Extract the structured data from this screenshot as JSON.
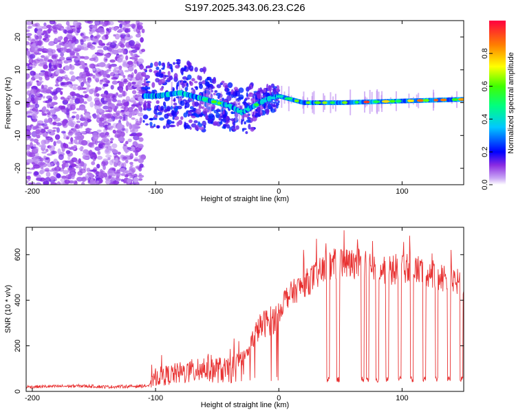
{
  "title": "S197.2025.343.06.23.C26",
  "chart_data": [
    {
      "type": "heatmap",
      "xlabel": "Height of straight line (km)",
      "ylabel": "Frequency (Hz)",
      "xlim": [
        -205,
        150
      ],
      "ylim": [
        -25,
        25
      ],
      "x_ticks": [
        -200,
        -100,
        0,
        100
      ],
      "y_ticks": [
        -20,
        -10,
        0,
        10,
        20
      ],
      "colorbar": {
        "label": "Normalized spectral amplitude",
        "range": [
          0,
          1
        ],
        "ticks": [
          "0.0",
          "0.2",
          "0.4",
          "0.6",
          "0.8"
        ]
      },
      "ridge": {
        "description_points_x": [
          -100,
          -80,
          -60,
          -40,
          -30,
          -20,
          -10,
          0,
          20,
          50,
          100,
          150
        ],
        "frequency_hz": [
          2,
          3,
          1,
          -1,
          -3,
          -1,
          1,
          2,
          0,
          0,
          0.5,
          1
        ]
      }
    },
    {
      "type": "line",
      "xlabel": "Height of straight line (km)",
      "ylabel": "SNR (10 * v/v)",
      "xlim": [
        -205,
        150
      ],
      "ylim": [
        0,
        720
      ],
      "x_ticks": [
        -200,
        -100,
        0,
        100
      ],
      "y_ticks": [
        0,
        200,
        400,
        600
      ],
      "series": [
        {
          "name": "SNR",
          "color": "#e83030",
          "x": [
            -205,
            -180,
            -160,
            -140,
            -120,
            -105,
            -100,
            -90,
            -80,
            -70,
            -60,
            -50,
            -40,
            -30,
            -25,
            -20,
            -15,
            -10,
            -5,
            0,
            5,
            10,
            20,
            30,
            40,
            50,
            60,
            70,
            80,
            90,
            100,
            110,
            120,
            130,
            140,
            150
          ],
          "y": [
            20,
            22,
            24,
            20,
            22,
            25,
            80,
            90,
            100,
            110,
            130,
            120,
            110,
            150,
            180,
            260,
            300,
            320,
            330,
            350,
            420,
            440,
            480,
            520,
            560,
            580,
            570,
            580,
            560,
            540,
            560,
            550,
            540,
            520,
            500,
            480
          ]
        }
      ],
      "dropouts_x": [
        40,
        48,
        68,
        72,
        80,
        88,
        98,
        108,
        118,
        128,
        138,
        148
      ]
    }
  ]
}
